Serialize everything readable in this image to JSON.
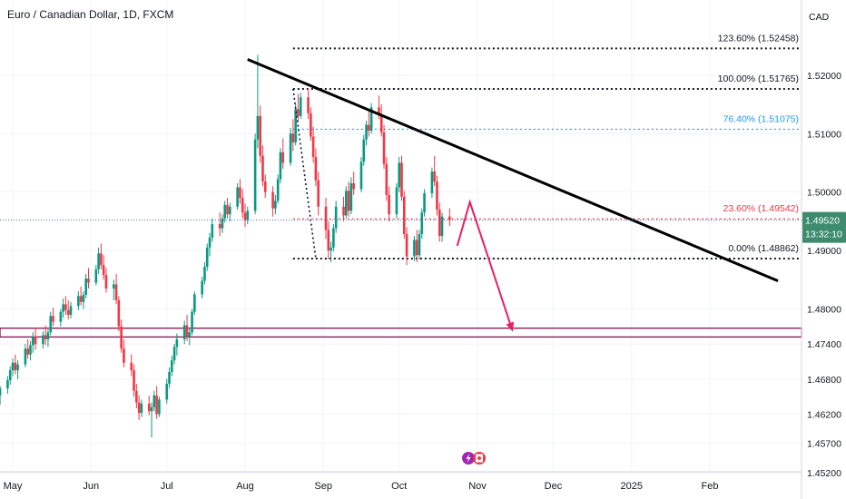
{
  "chart_data": {
    "type": "candlestick",
    "title": "Euro / Canadian Dollar, 1D, FXCM",
    "currency": "CAD",
    "ylim": [
      1.4526,
      1.531
    ],
    "y_ticks": [
      {
        "value": 1.52,
        "label": "1.52000"
      },
      {
        "value": 1.51,
        "label": "1.51000"
      },
      {
        "value": 1.5,
        "label": "1.50000"
      },
      {
        "value": 1.49,
        "label": "1.49000"
      },
      {
        "value": 1.48,
        "label": "1.48000"
      },
      {
        "value": 1.474,
        "label": "1.47400"
      },
      {
        "value": 1.468,
        "label": "1.46800"
      },
      {
        "value": 1.462,
        "label": "1.46200"
      },
      {
        "value": 1.457,
        "label": "1.45700"
      },
      {
        "value": 1.452,
        "label": "1.45200"
      }
    ],
    "x_ticks": [
      {
        "date": "2024-05-01",
        "label": "May"
      },
      {
        "date": "2024-06-01",
        "label": "Jun"
      },
      {
        "date": "2024-07-01",
        "label": "Jul"
      },
      {
        "date": "2024-08-01",
        "label": "Aug"
      },
      {
        "date": "2024-09-01",
        "label": "Sep"
      },
      {
        "date": "2024-10-01",
        "label": "Oct"
      },
      {
        "date": "2024-11-01",
        "label": "Nov"
      },
      {
        "date": "2024-12-01",
        "label": "Dec"
      },
      {
        "date": "2025-01-01",
        "label": "2025"
      },
      {
        "date": "2025-02-01",
        "label": "Feb"
      }
    ],
    "last_price": {
      "value": 1.4952,
      "label": "1.49520",
      "countdown": "13:32:10"
    },
    "fib_levels": [
      {
        "label": "123.60% (1.52458)",
        "value": 1.52458,
        "color": "#131722"
      },
      {
        "label": "100.00% (1.51765)",
        "value": 1.51765,
        "color": "#131722"
      },
      {
        "label": "76.40% (1.51075)",
        "value": 1.51075,
        "color": "#2196f3"
      },
      {
        "label": "23.60% (1.49542)",
        "value": 1.49542,
        "color": "#f23645"
      },
      {
        "label": "0.00% (1.48862)",
        "value": 1.48862,
        "color": "#131722"
      }
    ],
    "support_zone": {
      "top": 1.4767,
      "bottom": 1.4752,
      "color": "#880e4f"
    },
    "trendline": [
      {
        "date": "2024-08-02",
        "value": 1.5227
      },
      {
        "date": "2025-02-28",
        "value": 1.4848
      }
    ],
    "fib_anchor": [
      {
        "date": "2024-08-20",
        "value": 1.51765
      },
      {
        "date": "2024-08-29",
        "value": 1.48862
      }
    ],
    "projection_arrow": [
      {
        "date": "2024-10-24",
        "value": 1.4908
      },
      {
        "date": "2024-10-29",
        "value": 1.4983
      },
      {
        "date": "2024-11-15",
        "value": 1.4761
      }
    ],
    "candles_start": "2024-04-24",
    "candles": [
      [
        1.4672,
        1.469,
        1.4648,
        1.4661
      ],
      [
        1.4661,
        1.4672,
        1.4641,
        1.4652
      ],
      [
        1.4652,
        1.4668,
        1.4636,
        1.4664
      ],
      [
        1.4664,
        1.4685,
        1.4655,
        1.4678
      ],
      [
        1.4678,
        1.4702,
        1.467,
        1.4695
      ],
      [
        1.4695,
        1.4715,
        1.4685,
        1.4708
      ],
      [
        1.4708,
        1.4722,
        1.4688,
        1.4695
      ],
      [
        1.4695,
        1.4712,
        1.468,
        1.4705
      ],
      [
        1.4705,
        1.474,
        1.47,
        1.4732
      ],
      [
        1.4732,
        1.4748,
        1.4715,
        1.4722
      ],
      [
        1.4722,
        1.4745,
        1.4712,
        1.4738
      ],
      [
        1.4738,
        1.476,
        1.4725,
        1.4752
      ],
      [
        1.4752,
        1.4768,
        1.473,
        1.474
      ],
      [
        1.474,
        1.4762,
        1.4732,
        1.4755
      ],
      [
        1.4755,
        1.4772,
        1.4738,
        1.4748
      ],
      [
        1.4748,
        1.4765,
        1.4735,
        1.476
      ],
      [
        1.476,
        1.4795,
        1.4755,
        1.4788
      ],
      [
        1.4788,
        1.4802,
        1.477,
        1.4778
      ],
      [
        1.4778,
        1.48,
        1.477,
        1.4795
      ],
      [
        1.4795,
        1.4818,
        1.4785,
        1.4808
      ],
      [
        1.4808,
        1.4822,
        1.479,
        1.4798
      ],
      [
        1.4798,
        1.4815,
        1.4782,
        1.479
      ],
      [
        1.479,
        1.4812,
        1.4784,
        1.4805
      ],
      [
        1.4805,
        1.483,
        1.4798,
        1.4822
      ],
      [
        1.4822,
        1.4838,
        1.4806,
        1.4812
      ],
      [
        1.4812,
        1.483,
        1.48,
        1.4824
      ],
      [
        1.4824,
        1.486,
        1.4818,
        1.4852
      ],
      [
        1.4852,
        1.487,
        1.4835,
        1.4845
      ],
      [
        1.4845,
        1.4875,
        1.484,
        1.4868
      ],
      [
        1.4868,
        1.4905,
        1.486,
        1.4895
      ],
      [
        1.4895,
        1.4912,
        1.4868,
        1.4875
      ],
      [
        1.4875,
        1.4892,
        1.485,
        1.4858
      ],
      [
        1.4858,
        1.487,
        1.4828,
        1.4835
      ],
      [
        1.4835,
        1.485,
        1.4815,
        1.4842
      ],
      [
        1.4842,
        1.486,
        1.4808,
        1.4815
      ],
      [
        1.4815,
        1.4822,
        1.4762,
        1.477
      ],
      [
        1.477,
        1.4782,
        1.4725,
        1.4732
      ],
      [
        1.4732,
        1.4748,
        1.47,
        1.4708
      ],
      [
        1.4708,
        1.4722,
        1.4685,
        1.4695
      ],
      [
        1.4695,
        1.4705,
        1.465,
        1.466
      ],
      [
        1.466,
        1.4672,
        1.463,
        1.464
      ],
      [
        1.464,
        1.4652,
        1.461,
        1.4622
      ],
      [
        1.4622,
        1.4645,
        1.4615,
        1.4638
      ],
      [
        1.4638,
        1.4652,
        1.4618,
        1.4625
      ],
      [
        1.4625,
        1.464,
        1.458,
        1.4632
      ],
      [
        1.4632,
        1.466,
        1.4625,
        1.4652
      ],
      [
        1.4652,
        1.4668,
        1.4612,
        1.462
      ],
      [
        1.462,
        1.465,
        1.4615,
        1.4645
      ],
      [
        1.4645,
        1.468,
        1.4638,
        1.4672
      ],
      [
        1.4672,
        1.47,
        1.4665,
        1.4692
      ],
      [
        1.4692,
        1.472,
        1.4685,
        1.4712
      ],
      [
        1.4712,
        1.474,
        1.4705,
        1.4735
      ],
      [
        1.4735,
        1.4758,
        1.472,
        1.4748
      ],
      [
        1.4748,
        1.478,
        1.474,
        1.4772
      ],
      [
        1.4772,
        1.479,
        1.4745,
        1.4752
      ],
      [
        1.4752,
        1.4768,
        1.4738,
        1.476
      ],
      [
        1.476,
        1.48,
        1.4755,
        1.4795
      ],
      [
        1.4795,
        1.483,
        1.479,
        1.4825
      ],
      [
        1.4825,
        1.4855,
        1.4818,
        1.4848
      ],
      [
        1.4848,
        1.488,
        1.4842,
        1.4872
      ],
      [
        1.4872,
        1.4912,
        1.4865,
        1.4905
      ],
      [
        1.4905,
        1.493,
        1.489,
        1.4922
      ],
      [
        1.4922,
        1.4955,
        1.4915,
        1.4945
      ],
      [
        1.4945,
        1.4965,
        1.4925,
        1.4938
      ],
      [
        1.4938,
        1.4962,
        1.493,
        1.4955
      ],
      [
        1.4955,
        1.4985,
        1.4948,
        1.4978
      ],
      [
        1.4978,
        1.499,
        1.4955,
        1.4962
      ],
      [
        1.4962,
        1.4982,
        1.495,
        1.4975
      ],
      [
        1.4975,
        1.5015,
        1.497,
        1.5008
      ],
      [
        1.5008,
        1.5022,
        1.498,
        1.499
      ],
      [
        1.499,
        1.5005,
        1.4955,
        1.4965
      ],
      [
        1.4965,
        1.498,
        1.494,
        1.4952
      ],
      [
        1.4952,
        1.4975,
        1.4945,
        1.4968
      ],
      [
        1.4968,
        1.51,
        1.4962,
        1.509
      ],
      [
        1.509,
        1.5235,
        1.5075,
        1.513
      ],
      [
        1.513,
        1.5148,
        1.505,
        1.5062
      ],
      [
        1.5062,
        1.508,
        1.501,
        1.5018
      ],
      [
        1.5018,
        1.503,
        1.499,
        1.5
      ],
      [
        1.5,
        1.501,
        1.4958,
        1.4972
      ],
      [
        1.4972,
        1.4995,
        1.4962,
        1.4985
      ],
      [
        1.4985,
        1.503,
        1.498,
        1.5022
      ],
      [
        1.5022,
        1.5075,
        1.5015,
        1.5068
      ],
      [
        1.5068,
        1.5092,
        1.504,
        1.505
      ],
      [
        1.505,
        1.511,
        1.5045,
        1.51
      ],
      [
        1.51,
        1.5125,
        1.507,
        1.5085
      ],
      [
        1.5085,
        1.515,
        1.508,
        1.5142
      ],
      [
        1.5142,
        1.5168,
        1.512,
        1.513
      ],
      [
        1.513,
        1.517,
        1.5125,
        1.5162
      ],
      [
        1.5162,
        1.5178,
        1.5125,
        1.5135
      ],
      [
        1.5135,
        1.5145,
        1.5088,
        1.5095
      ],
      [
        1.5095,
        1.5112,
        1.505,
        1.506
      ],
      [
        1.506,
        1.5075,
        1.501,
        1.502
      ],
      [
        1.502,
        1.5035,
        1.496,
        1.4975
      ],
      [
        1.4975,
        1.499,
        1.492,
        1.4935
      ],
      [
        1.4935,
        1.495,
        1.4885,
        1.49
      ],
      [
        1.49,
        1.4915,
        1.488,
        1.4905
      ],
      [
        1.4905,
        1.4945,
        1.4898,
        1.4938
      ],
      [
        1.4938,
        1.4985,
        1.493,
        1.4975
      ],
      [
        1.4975,
        1.4992,
        1.495,
        1.496
      ],
      [
        1.496,
        1.501,
        1.4955,
        1.5002
      ],
      [
        1.5002,
        1.5018,
        1.4958,
        1.4968
      ],
      [
        1.4968,
        1.5025,
        1.4962,
        1.5015
      ],
      [
        1.5015,
        1.5035,
        1.4995,
        1.5005
      ],
      [
        1.5005,
        1.506,
        1.5,
        1.5052
      ],
      [
        1.5052,
        1.5098,
        1.5045,
        1.509
      ],
      [
        1.509,
        1.5122,
        1.508,
        1.5115
      ],
      [
        1.5115,
        1.514,
        1.5095,
        1.5105
      ],
      [
        1.5105,
        1.5152,
        1.51,
        1.5145
      ],
      [
        1.5145,
        1.5165,
        1.5125,
        1.5132
      ],
      [
        1.5132,
        1.515,
        1.5095,
        1.5102
      ],
      [
        1.5102,
        1.5115,
        1.504,
        1.5048
      ],
      [
        1.5048,
        1.506,
        1.4985,
        1.4995
      ],
      [
        1.4995,
        1.501,
        1.495,
        1.4962
      ],
      [
        1.4962,
        1.5015,
        1.4955,
        1.5008
      ],
      [
        1.5008,
        1.506,
        1.5,
        1.505
      ],
      [
        1.505,
        1.5062,
        1.4985,
        1.4992
      ],
      [
        1.4992,
        1.5002,
        1.492,
        1.4928
      ],
      [
        1.4928,
        1.494,
        1.4875,
        1.489
      ],
      [
        1.489,
        1.4925,
        1.4882,
        1.4918
      ],
      [
        1.4918,
        1.4935,
        1.488,
        1.4892
      ],
      [
        1.4892,
        1.4935,
        1.4885,
        1.4928
      ],
      [
        1.4928,
        1.4972,
        1.492,
        1.4965
      ],
      [
        1.4965,
        1.5005,
        1.4958,
        1.4998
      ],
      [
        1.4998,
        1.5042,
        1.499,
        1.5035
      ],
      [
        1.5035,
        1.5062,
        1.501,
        1.5018
      ],
      [
        1.5018,
        1.5028,
        1.496,
        1.497
      ],
      [
        1.497,
        1.4982,
        1.4915,
        1.4925
      ],
      [
        1.4925,
        1.4965,
        1.4915,
        1.4958
      ],
      [
        1.4958,
        1.4972,
        1.4942,
        1.4952
      ]
    ]
  }
}
